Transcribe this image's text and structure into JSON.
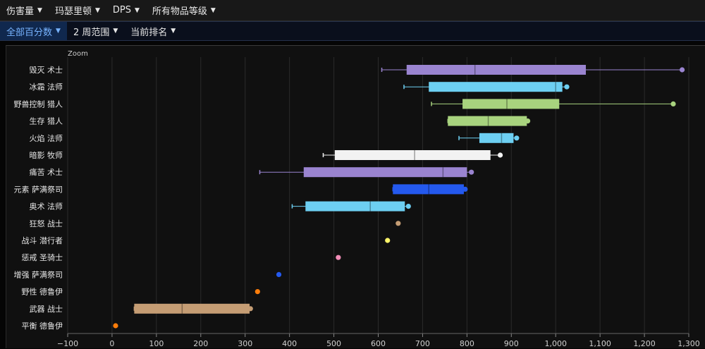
{
  "filters": {
    "row1": [
      {
        "label": "伤害量"
      },
      {
        "label": "玛瑟里顿"
      },
      {
        "label": "DPS"
      },
      {
        "label": "所有物品等级"
      }
    ],
    "row2": [
      {
        "label": "全部百分数",
        "active": true
      },
      {
        "label": "2 周范围"
      },
      {
        "label": "当前排名"
      }
    ]
  },
  "zoom_label": "Zoom",
  "chart_data": {
    "type": "boxplot",
    "orientation": "horizontal",
    "xlim": [
      -100,
      1300
    ],
    "xticks": [
      -100,
      0,
      100,
      200,
      300,
      400,
      500,
      600,
      700,
      800,
      900,
      1000,
      1100,
      1200,
      1300
    ],
    "xtick_labels": [
      "−100",
      "0",
      "100",
      "200",
      "300",
      "400",
      "500",
      "600",
      "700",
      "800",
      "900",
      "1,000",
      "1,100",
      "1,200",
      "1,300"
    ],
    "grid": true,
    "series": [
      {
        "name": "毁灭 术士",
        "color": "#9a84d0",
        "min": 608,
        "q1": 664,
        "median": 818,
        "q3": 1068,
        "max": 1285
      },
      {
        "name": "冰霜 法师",
        "color": "#6dcff2",
        "min": 658,
        "q1": 714,
        "median": 1000,
        "q3": 1015,
        "max": 1025
      },
      {
        "name": "野兽控制 猎人",
        "color": "#a8d37e",
        "min": 720,
        "q1": 790,
        "median": 890,
        "q3": 1008,
        "max": 1265
      },
      {
        "name": "生存 猎人",
        "color": "#a8d37e",
        "min": 757,
        "q1": 757,
        "median": 848,
        "q3": 935,
        "max": 937
      },
      {
        "name": "火焰 法师",
        "color": "#6dcff2",
        "min": 782,
        "q1": 828,
        "median": 878,
        "q3": 905,
        "max": 912
      },
      {
        "name": "暗影 牧师",
        "color": "#f2f2f2",
        "min": 476,
        "q1": 502,
        "median": 682,
        "q3": 853,
        "max": 875
      },
      {
        "name": "痛苦 术士",
        "color": "#9a84d0",
        "min": 333,
        "q1": 432,
        "median": 746,
        "q3": 800,
        "max": 810
      },
      {
        "name": "元素 萨满祭司",
        "color": "#2459ee",
        "min": 633,
        "q1": 633,
        "median": 714,
        "q3": 793,
        "max": 796
      },
      {
        "name": "奥术 法师",
        "color": "#6dcff2",
        "min": 406,
        "q1": 436,
        "median": 582,
        "q3": 660,
        "max": 668
      },
      {
        "name": "狂怒 战士",
        "color": "#c59d74",
        "min": 645,
        "q1": 645,
        "median": 645,
        "q3": 645,
        "max": 645
      },
      {
        "name": "战斗 潜行者",
        "color": "#fff56a",
        "min": 621,
        "q1": 621,
        "median": 621,
        "q3": 621,
        "max": 621
      },
      {
        "name": "惩戒 圣骑士",
        "color": "#f28eb8",
        "min": 510,
        "q1": 510,
        "median": 510,
        "q3": 510,
        "max": 510
      },
      {
        "name": "增强 萨满祭司",
        "color": "#2459ee",
        "min": 376,
        "q1": 376,
        "median": 376,
        "q3": 376,
        "max": 376
      },
      {
        "name": "野性 德鲁伊",
        "color": "#ff7d0a",
        "min": 328,
        "q1": 328,
        "median": 328,
        "q3": 328,
        "max": 328
      },
      {
        "name": "武器 战士",
        "color": "#c59d74",
        "min": 50,
        "q1": 50,
        "median": 158,
        "q3": 310,
        "max": 312
      },
      {
        "name": "平衡 德鲁伊",
        "color": "#ff7d0a",
        "min": 8,
        "q1": 8,
        "median": 8,
        "q3": 8,
        "max": 8
      }
    ]
  }
}
